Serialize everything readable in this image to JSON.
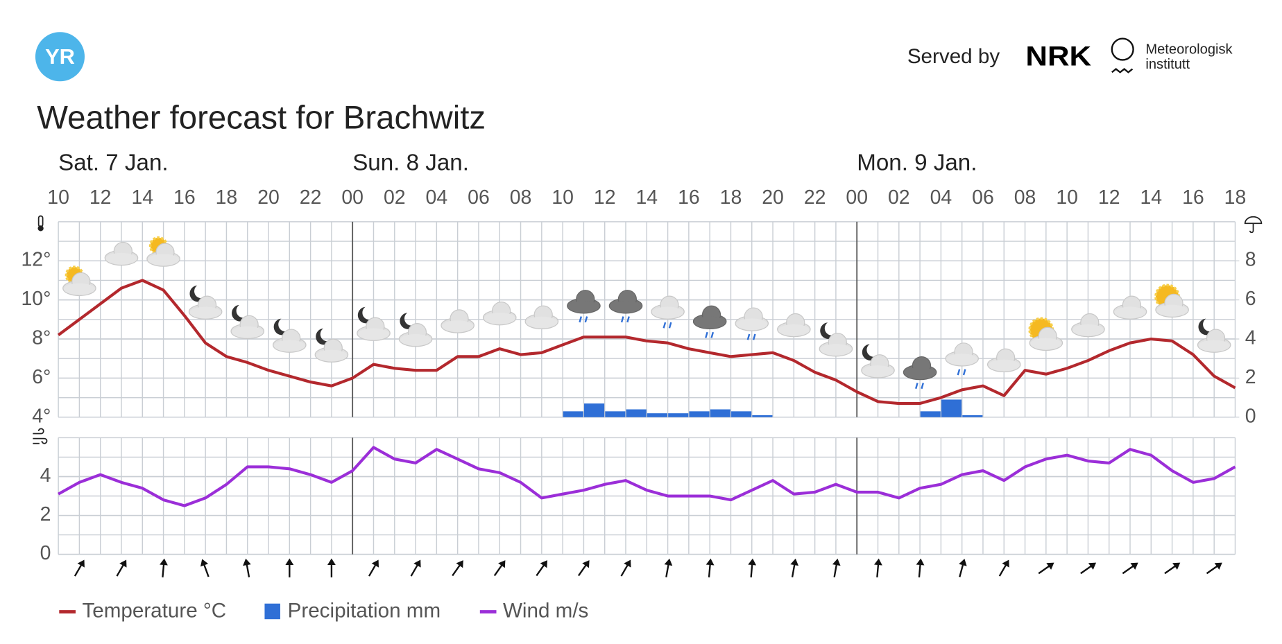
{
  "header": {
    "logo": "YR",
    "served_by": "Served by",
    "nrk": "NRK",
    "met_line1": "Meteorologisk",
    "met_line2": "institutt"
  },
  "chart_data": {
    "type": "line",
    "title": "Weather forecast for Brachwitz",
    "days": [
      "Sat. 7 Jan.",
      "Sun. 8 Jan.",
      "Mon. 9 Jan."
    ],
    "x_labels": [
      "10",
      "12",
      "14",
      "16",
      "18",
      "20",
      "22",
      "00",
      "02",
      "04",
      "06",
      "08",
      "10",
      "12",
      "14",
      "16",
      "18",
      "20",
      "22",
      "00",
      "02",
      "04",
      "06",
      "08",
      "10",
      "12",
      "14",
      "16",
      "18"
    ],
    "ylim": [
      4,
      14
    ],
    "yticks": [
      {
        "value": 4,
        "label": "4°"
      },
      {
        "value": 6,
        "label": "6°"
      },
      {
        "value": 8,
        "label": "8°"
      },
      {
        "value": 10,
        "label": "10°"
      },
      {
        "value": 12,
        "label": "12°"
      }
    ],
    "y2lim": [
      0,
      10
    ],
    "y2ticks": [
      0,
      2,
      4,
      6,
      8
    ],
    "wind_ylim": [
      0,
      6
    ],
    "wind_yticks": [
      0,
      2,
      4
    ],
    "grid": true,
    "series": [
      {
        "name": "Temperature °C",
        "color": "#b3282d",
        "values": [
          8.2,
          9.0,
          9.8,
          10.6,
          11.0,
          10.5,
          9.2,
          7.8,
          7.1,
          6.8,
          6.4,
          6.1,
          5.8,
          5.6,
          6.0,
          6.7,
          6.5,
          6.4,
          6.4,
          7.1,
          7.1,
          7.5,
          7.2,
          7.3,
          7.7,
          8.1,
          8.1,
          8.1,
          7.9,
          7.8,
          7.5,
          7.3,
          7.1,
          7.2,
          7.3,
          6.9,
          6.3,
          5.9,
          5.3,
          4.8,
          4.7,
          4.7,
          5.0,
          5.4,
          5.6,
          5.1,
          6.4,
          6.2,
          6.5,
          6.9,
          7.4,
          7.8,
          8.0,
          7.9,
          7.2,
          6.1,
          5.5
        ]
      },
      {
        "name": "Precipitation mm",
        "color": "#2f6fd6",
        "axis": "y2",
        "values": [
          0,
          0,
          0,
          0,
          0,
          0,
          0,
          0,
          0,
          0,
          0,
          0,
          0,
          0,
          0,
          0,
          0,
          0,
          0,
          0,
          0,
          0,
          0,
          0,
          0.3,
          0.7,
          0.3,
          0.4,
          0.2,
          0.2,
          0.3,
          0.4,
          0.3,
          0.1,
          0,
          0,
          0,
          0,
          0,
          0,
          0,
          0.3,
          0.9,
          0.1,
          0,
          0,
          0,
          0,
          0,
          0,
          0,
          0,
          0,
          0,
          0,
          0,
          0
        ]
      },
      {
        "name": "Wind m/s",
        "color": "#9b2ed8",
        "axis": "wind",
        "values": [
          3.1,
          3.7,
          4.1,
          3.7,
          3.4,
          2.8,
          2.5,
          2.9,
          3.6,
          4.5,
          4.5,
          4.4,
          4.1,
          3.7,
          4.3,
          5.5,
          4.9,
          4.7,
          5.4,
          4.9,
          4.4,
          4.2,
          3.7,
          2.9,
          3.1,
          3.3,
          3.6,
          3.8,
          3.3,
          3.0,
          3.0,
          3.0,
          2.8,
          3.3,
          3.8,
          3.1,
          3.2,
          3.6,
          3.2,
          3.2,
          2.9,
          3.4,
          3.6,
          4.1,
          4.3,
          3.8,
          4.5,
          4.9,
          5.1,
          4.8,
          4.7,
          5.4,
          5.1,
          4.3,
          3.7,
          3.9,
          4.5
        ]
      }
    ],
    "wind_direction_deg": [
      30,
      30,
      5,
      -20,
      -10,
      0,
      0,
      30,
      30,
      35,
      35,
      35,
      35,
      30,
      10,
      5,
      5,
      10,
      10,
      5,
      5,
      15,
      30,
      55,
      55,
      55,
      55,
      55
    ]
  }
}
